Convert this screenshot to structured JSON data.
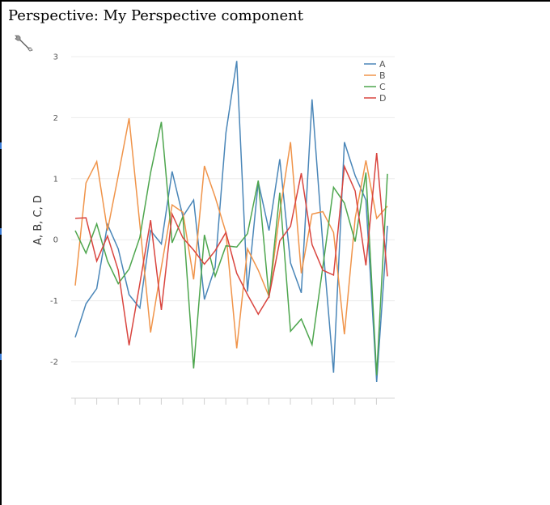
{
  "page": {
    "title": "Perspective: My Perspective component",
    "settings_icon": "wrench-icon"
  },
  "chart_data": {
    "type": "line",
    "title": "",
    "xlabel": "",
    "ylabel": "A, B, C, D",
    "ylim": [
      -2.6,
      3.2
    ],
    "yticks": [
      -2,
      -1,
      0,
      1,
      2,
      3
    ],
    "grid": true,
    "legend_position": "top-right",
    "x": [
      0,
      1,
      2,
      3,
      4,
      5,
      6,
      7,
      8,
      9,
      10,
      11,
      12,
      13,
      14,
      15,
      16,
      17,
      18,
      19,
      20,
      21,
      22,
      23,
      24,
      25,
      26,
      27,
      28,
      29
    ],
    "series": [
      {
        "name": "A",
        "color": "#4a86b8",
        "values": [
          -1.6,
          -1.05,
          -0.8,
          0.25,
          -0.15,
          -0.9,
          -1.12,
          0.15,
          -0.07,
          1.12,
          0.38,
          0.65,
          -0.98,
          -0.45,
          1.75,
          2.93,
          -0.85,
          0.95,
          0.15,
          1.32,
          -0.38,
          -0.87,
          2.3,
          -0.07,
          -2.18,
          1.6,
          1.05,
          0.65,
          -2.33,
          0.23
        ]
      },
      {
        "name": "B",
        "color": "#f0944a",
        "values": [
          -0.75,
          0.93,
          1.28,
          0.15,
          1.05,
          1.99,
          0.25,
          -1.52,
          -0.45,
          0.57,
          0.45,
          -0.65,
          1.21,
          0.7,
          0.12,
          -1.78,
          -0.15,
          -0.5,
          -0.93,
          0.45,
          1.6,
          -0.55,
          0.42,
          0.46,
          0.12,
          -1.55,
          0.35,
          1.3,
          0.35,
          0.55
        ]
      },
      {
        "name": "C",
        "color": "#4ea64e",
        "values": [
          0.15,
          -0.22,
          0.26,
          -0.35,
          -0.72,
          -0.48,
          0.04,
          1.1,
          1.93,
          -0.05,
          0.38,
          -2.11,
          0.08,
          -0.6,
          -0.1,
          -0.12,
          0.1,
          0.97,
          -0.95,
          0.77,
          -1.5,
          -1.3,
          -1.72,
          -0.45,
          0.86,
          0.6,
          -0.03,
          1.1,
          -2.22,
          1.08
        ]
      },
      {
        "name": "D",
        "color": "#d9453f",
        "values": [
          0.35,
          0.36,
          -0.35,
          0.06,
          -0.5,
          -1.73,
          -0.72,
          0.32,
          -1.15,
          0.42,
          0.03,
          -0.17,
          -0.4,
          -0.18,
          0.12,
          -0.55,
          -0.9,
          -1.22,
          -0.93,
          -0.02,
          0.22,
          1.09,
          -0.08,
          -0.5,
          -0.58,
          1.2,
          0.8,
          -0.42,
          1.42,
          -0.6
        ]
      }
    ]
  }
}
